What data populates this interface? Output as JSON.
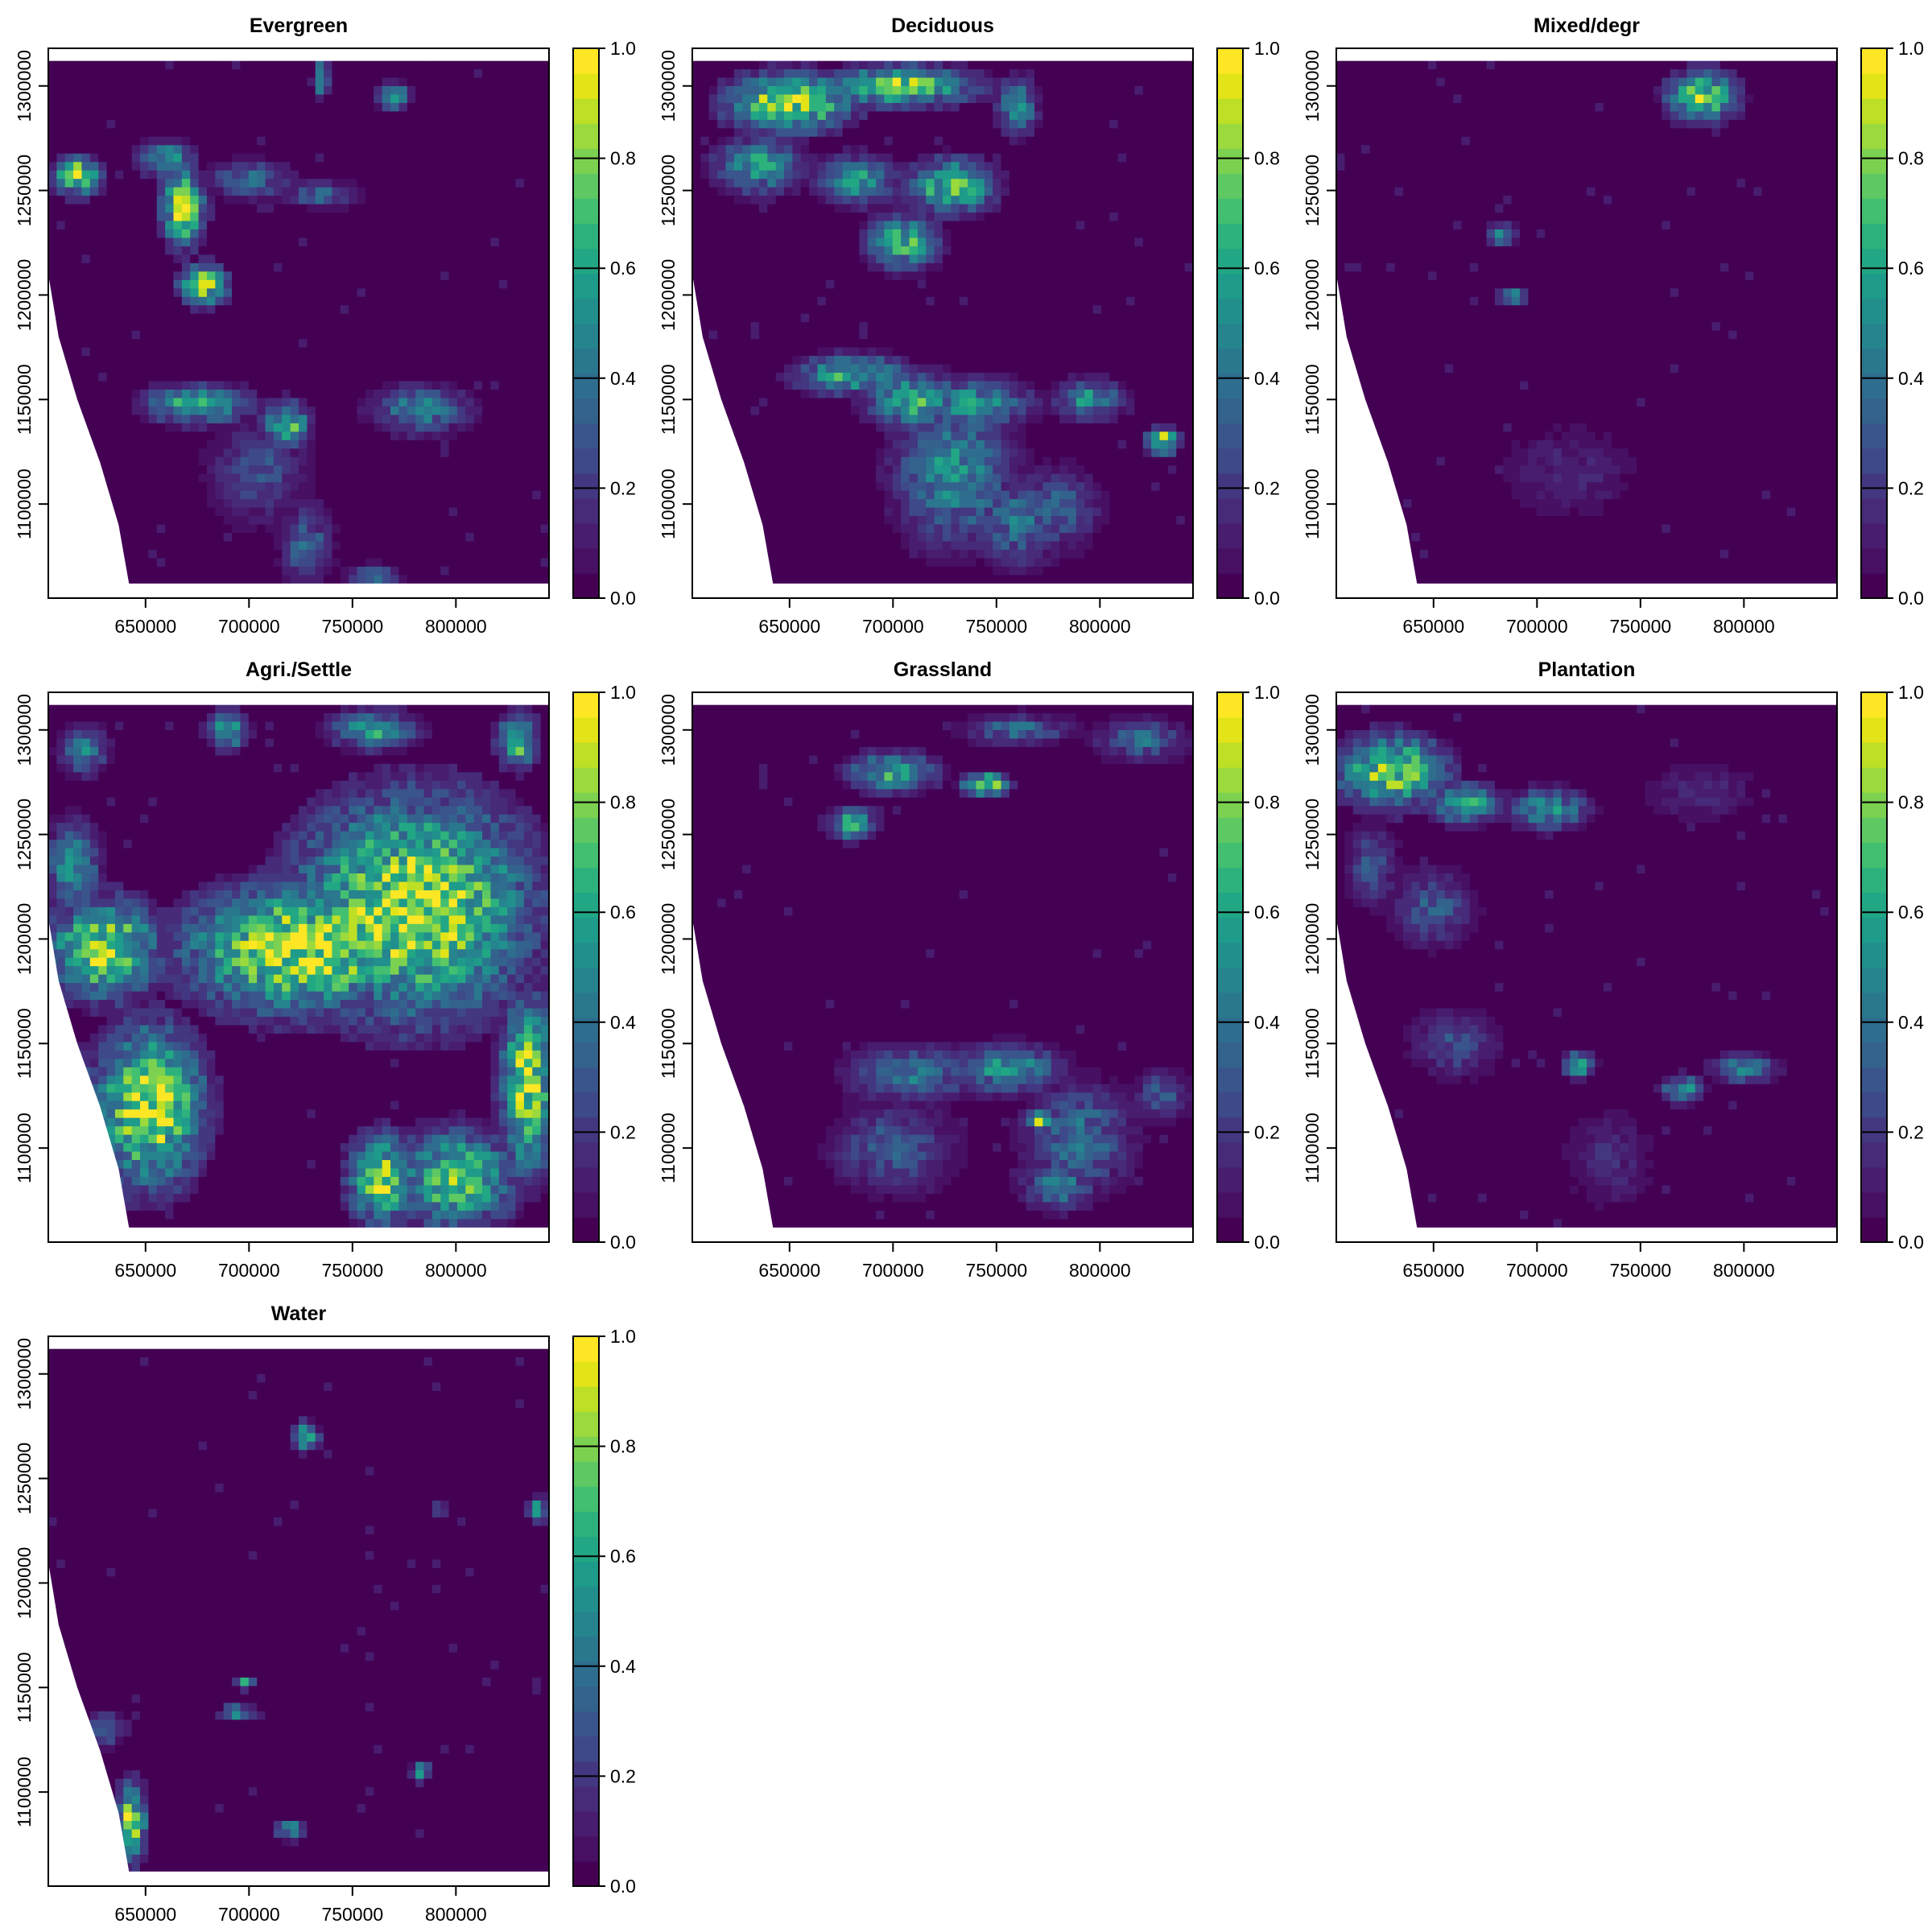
{
  "chart_data": {
    "type": "heatmap",
    "layout": {
      "rows": 3,
      "cols": 3
    },
    "colormap": {
      "name": "viridis",
      "steps": [
        "#440154",
        "#471063",
        "#481d6f",
        "#472a7a",
        "#433781",
        "#3e4989",
        "#39558c",
        "#33628d",
        "#2e6d8e",
        "#2a788e",
        "#25848e",
        "#21908d",
        "#1e9b8a",
        "#22a785",
        "#2db27d",
        "#43bf71",
        "#5ec962",
        "#7cd250",
        "#9bd93c",
        "#bddf26",
        "#e2e418",
        "#fde725"
      ],
      "min": 0.0,
      "max": 1.0,
      "ticks": [
        "0.0",
        "0.2",
        "0.4",
        "0.6",
        "0.8",
        "1.0"
      ]
    },
    "x_axis": {
      "range": [
        603000,
        845000
      ],
      "ticks": [
        650000,
        700000,
        750000,
        800000
      ],
      "tick_labels": [
        "650000",
        "700000",
        "750000",
        "800000"
      ]
    },
    "y_axis": {
      "range": [
        1055000,
        1318000
      ],
      "ticks": [
        1100000,
        1150000,
        1200000,
        1250000,
        1300000
      ],
      "tick_labels": [
        "1100000",
        "1150000",
        "1200000",
        "1250000",
        "1300000"
      ]
    },
    "extent": {
      "xmin": 603000,
      "xmax": 845000,
      "ymin": 1062000,
      "ymax": 1312000
    },
    "coast": [
      [
        1312000,
        603000
      ],
      [
        1210000,
        603000
      ],
      [
        1180000,
        608000
      ],
      [
        1150000,
        617000
      ],
      [
        1120000,
        628000
      ],
      [
        1090000,
        637000
      ],
      [
        1062000,
        642000
      ]
    ],
    "panels": [
      {
        "title": "Evergreen",
        "base": 0.0,
        "blobs": [
          [
            617000,
            1257000,
            12000,
            10000,
            0.9
          ],
          [
            660000,
            1265000,
            14000,
            9000,
            0.6
          ],
          [
            668000,
            1242000,
            11000,
            20000,
            0.95
          ],
          [
            678000,
            1205000,
            12000,
            10000,
            0.95
          ],
          [
            700000,
            1255000,
            20000,
            9000,
            0.45
          ],
          [
            735000,
            1248000,
            18000,
            6000,
            0.4
          ],
          [
            770000,
            1295000,
            8000,
            7000,
            0.7
          ],
          [
            735000,
            1303000,
            4000,
            9000,
            0.8
          ],
          [
            675000,
            1148000,
            26000,
            10000,
            0.7
          ],
          [
            718000,
            1138000,
            12000,
            12000,
            0.75
          ],
          [
            705000,
            1115000,
            25000,
            25000,
            0.3
          ],
          [
            728000,
            1080000,
            12000,
            20000,
            0.4
          ],
          [
            783000,
            1145000,
            24000,
            12000,
            0.5
          ],
          [
            760000,
            1065000,
            12000,
            6000,
            0.5
          ]
        ]
      },
      {
        "title": "Deciduous",
        "base": 0.0,
        "blobs": [
          [
            650000,
            1292000,
            32000,
            15000,
            0.95
          ],
          [
            705000,
            1300000,
            38000,
            10000,
            0.85
          ],
          [
            635000,
            1262000,
            22000,
            14000,
            0.6
          ],
          [
            683000,
            1255000,
            20000,
            12000,
            0.6
          ],
          [
            728000,
            1252000,
            22000,
            14000,
            0.8
          ],
          [
            705000,
            1225000,
            18000,
            14000,
            0.7
          ],
          [
            760000,
            1290000,
            10000,
            14000,
            0.6
          ],
          [
            680000,
            1162000,
            28000,
            10000,
            0.7
          ],
          [
            710000,
            1150000,
            24000,
            14000,
            0.7
          ],
          [
            740000,
            1148000,
            28000,
            12000,
            0.6
          ],
          [
            795000,
            1150000,
            18000,
            10000,
            0.55
          ],
          [
            730000,
            1115000,
            30000,
            36000,
            0.55
          ],
          [
            760000,
            1092000,
            22000,
            22000,
            0.45
          ],
          [
            830000,
            1130000,
            8000,
            7000,
            0.9
          ],
          [
            780000,
            1098000,
            20000,
            20000,
            0.35
          ]
        ]
      },
      {
        "title": "Mixed/degr",
        "base": 0.0,
        "blobs": [
          [
            780000,
            1295000,
            18000,
            13000,
            0.85
          ],
          [
            683000,
            1229000,
            7000,
            6000,
            0.6
          ],
          [
            688000,
            1199000,
            8000,
            3000,
            0.8
          ],
          [
            715000,
            1115000,
            35000,
            25000,
            0.15
          ]
        ]
      },
      {
        "title": "Agri./Settle",
        "base": 0.0,
        "blobs": [
          [
            780000,
            1215000,
            60000,
            55000,
            1.0
          ],
          [
            725000,
            1195000,
            60000,
            32000,
            1.0
          ],
          [
            630000,
            1195000,
            28000,
            25000,
            0.95
          ],
          [
            615000,
            1235000,
            14000,
            22000,
            0.55
          ],
          [
            652000,
            1120000,
            28000,
            40000,
            1.0
          ],
          [
            620000,
            1100000,
            18000,
            40000,
            0.8
          ],
          [
            835000,
            1130000,
            14000,
            45000,
            0.95
          ],
          [
            800000,
            1085000,
            30000,
            25000,
            0.8
          ],
          [
            765000,
            1085000,
            18000,
            22000,
            0.9
          ],
          [
            690000,
            1300000,
            10000,
            10000,
            0.7
          ],
          [
            760000,
            1300000,
            22000,
            10000,
            0.6
          ],
          [
            830000,
            1295000,
            10000,
            14000,
            0.8
          ],
          [
            620000,
            1290000,
            12000,
            12000,
            0.5
          ]
        ]
      },
      {
        "title": "Grassland",
        "base": 0.0,
        "blobs": [
          [
            700000,
            1280000,
            22000,
            10000,
            0.7
          ],
          [
            745000,
            1274000,
            12000,
            6000,
            0.9
          ],
          [
            680000,
            1255000,
            12000,
            8000,
            0.75
          ],
          [
            760000,
            1300000,
            26000,
            8000,
            0.4
          ],
          [
            820000,
            1295000,
            22000,
            10000,
            0.4
          ],
          [
            755000,
            1138000,
            28000,
            12000,
            0.6
          ],
          [
            710000,
            1135000,
            32000,
            14000,
            0.45
          ],
          [
            700000,
            1100000,
            30000,
            22000,
            0.35
          ],
          [
            790000,
            1105000,
            26000,
            26000,
            0.45
          ],
          [
            770000,
            1113000,
            8000,
            5000,
            0.8
          ],
          [
            830000,
            1125000,
            14000,
            12000,
            0.35
          ],
          [
            780000,
            1082000,
            18000,
            12000,
            0.5
          ]
        ]
      },
      {
        "title": "Plantation",
        "base": 0.0,
        "blobs": [
          [
            630000,
            1280000,
            28000,
            18000,
            0.9
          ],
          [
            665000,
            1265000,
            18000,
            10000,
            0.7
          ],
          [
            705000,
            1262000,
            20000,
            10000,
            0.6
          ],
          [
            620000,
            1235000,
            12000,
            20000,
            0.35
          ],
          [
            650000,
            1215000,
            20000,
            18000,
            0.35
          ],
          [
            660000,
            1150000,
            22000,
            16000,
            0.3
          ],
          [
            720000,
            1140000,
            8000,
            7000,
            0.65
          ],
          [
            770000,
            1128000,
            10000,
            7000,
            0.65
          ],
          [
            800000,
            1138000,
            16000,
            7000,
            0.55
          ],
          [
            735000,
            1095000,
            22000,
            24000,
            0.18
          ],
          [
            780000,
            1270000,
            30000,
            16000,
            0.15
          ]
        ]
      },
      {
        "title": "Water",
        "base": 0.0,
        "blobs": [
          [
            643000,
            1085000,
            8000,
            20000,
            0.9
          ],
          [
            630000,
            1130000,
            10000,
            8000,
            0.45
          ],
          [
            727000,
            1270000,
            7000,
            7000,
            0.8
          ],
          [
            694000,
            1138000,
            9000,
            3000,
            0.75
          ],
          [
            698000,
            1152000,
            5000,
            3000,
            0.6
          ],
          [
            783000,
            1110000,
            4000,
            5000,
            0.8
          ],
          [
            720000,
            1082000,
            8000,
            5000,
            0.6
          ],
          [
            840000,
            1235000,
            6000,
            6000,
            0.6
          ],
          [
            792000,
            1235000,
            3000,
            4000,
            0.5
          ]
        ]
      }
    ]
  }
}
